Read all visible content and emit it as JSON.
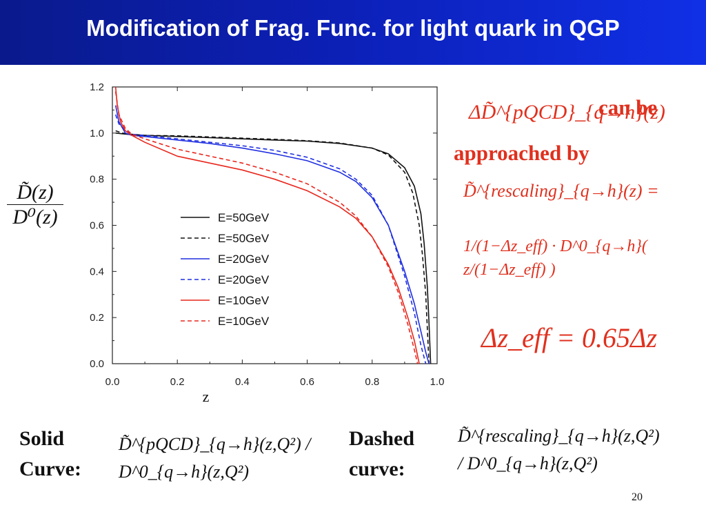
{
  "slide": {
    "title": "Modification of Frag. Func. for light quark in QGP",
    "page_number": "20"
  },
  "formulas": {
    "ylabel_numerator": "D̃(z)",
    "ylabel_denominator": "D⁰(z)",
    "intro_formula": "ΔD̃^{pQCD}_{q→h}(z)",
    "can_be": "can be",
    "approached_by": "approached by",
    "rescaling_lhs": "D̃^{rescaling}_{q→h}(z) =",
    "rescaling_rhs": "1/(1−Δz_eff) · D^0_{q→h}( z/(1−Δz_eff) )",
    "delta_z_eff": "Δz_eff = 0.65Δz",
    "solid_label_1": "Solid",
    "solid_label_2": "Curve:",
    "solid_formula": "D̃^{pQCD}_{q→h}(z,Q²) / D^0_{q→h}(z,Q²)",
    "dashed_label_1": "Dashed",
    "dashed_label_2": "curve:",
    "dashed_formula": "D̃^{rescaling}_{q→h}(z,Q²) / D^0_{q→h}(z,Q²)"
  },
  "colors": {
    "title_bar": "#0c1fb4",
    "formula_red": "#e0301e",
    "black": "#111111",
    "blue": "#1f2fe0",
    "red": "#e8261c"
  },
  "chart_data": {
    "type": "line",
    "xlabel": "z",
    "ylabel": "",
    "xlim": [
      0.0,
      1.0
    ],
    "ylim": [
      0.0,
      1.2
    ],
    "xticks": [
      "0.0",
      "0.2",
      "0.4",
      "0.6",
      "0.8",
      "1.0"
    ],
    "yticks": [
      "0.0",
      "0.2",
      "0.4",
      "0.6",
      "0.8",
      "1.0",
      "1.2"
    ],
    "legend_position": "center-left",
    "series": [
      {
        "name": "E=50GeV",
        "color": "#111111",
        "dash": false,
        "x": [
          0.01,
          0.03,
          0.06,
          0.1,
          0.2,
          0.3,
          0.4,
          0.5,
          0.6,
          0.7,
          0.8,
          0.85,
          0.9,
          0.93,
          0.95,
          0.96,
          0.97,
          0.975,
          0.98
        ],
        "y": [
          1.0,
          0.997,
          0.993,
          0.99,
          0.985,
          0.98,
          0.975,
          0.97,
          0.965,
          0.955,
          0.935,
          0.91,
          0.85,
          0.77,
          0.65,
          0.52,
          0.33,
          0.18,
          0.0
        ]
      },
      {
        "name": "E=50GeV",
        "color": "#111111",
        "dash": true,
        "x": [
          0.01,
          0.03,
          0.06,
          0.1,
          0.2,
          0.3,
          0.4,
          0.5,
          0.6,
          0.7,
          0.8,
          0.85,
          0.9,
          0.925,
          0.945,
          0.955,
          0.965,
          0.975
        ],
        "y": [
          1.01,
          1.0,
          0.995,
          0.99,
          0.988,
          0.983,
          0.978,
          0.973,
          0.967,
          0.957,
          0.935,
          0.905,
          0.83,
          0.74,
          0.6,
          0.47,
          0.3,
          0.0
        ]
      },
      {
        "name": "E=20GeV",
        "color": "#1f2fe0",
        "dash": false,
        "x": [
          0.01,
          0.02,
          0.04,
          0.06,
          0.1,
          0.2,
          0.3,
          0.4,
          0.5,
          0.6,
          0.7,
          0.75,
          0.8,
          0.85,
          0.9,
          0.93,
          0.95,
          0.965,
          0.975
        ],
        "y": [
          1.12,
          1.05,
          1.0,
          0.99,
          0.985,
          0.97,
          0.955,
          0.935,
          0.91,
          0.88,
          0.83,
          0.79,
          0.72,
          0.6,
          0.4,
          0.26,
          0.14,
          0.05,
          0.0
        ]
      },
      {
        "name": "E=20GeV",
        "color": "#1f2fe0",
        "dash": true,
        "x": [
          0.01,
          0.02,
          0.04,
          0.06,
          0.1,
          0.2,
          0.3,
          0.4,
          0.5,
          0.6,
          0.7,
          0.75,
          0.8,
          0.85,
          0.9,
          0.93,
          0.95,
          0.965
        ],
        "y": [
          1.08,
          1.04,
          1.01,
          0.995,
          0.99,
          0.975,
          0.96,
          0.945,
          0.925,
          0.895,
          0.845,
          0.8,
          0.73,
          0.6,
          0.38,
          0.22,
          0.08,
          0.0
        ]
      },
      {
        "name": "E=10GeV",
        "color": "#e8261c",
        "dash": false,
        "x": [
          0.01,
          0.015,
          0.025,
          0.04,
          0.06,
          0.1,
          0.2,
          0.3,
          0.4,
          0.5,
          0.6,
          0.7,
          0.75,
          0.8,
          0.85,
          0.88,
          0.91,
          0.93,
          0.945
        ],
        "y": [
          1.2,
          1.12,
          1.05,
          1.01,
          0.99,
          0.96,
          0.9,
          0.87,
          0.84,
          0.8,
          0.75,
          0.68,
          0.63,
          0.55,
          0.43,
          0.33,
          0.2,
          0.1,
          0.0
        ]
      },
      {
        "name": "E=10GeV",
        "color": "#e8261c",
        "dash": true,
        "x": [
          0.01,
          0.02,
          0.04,
          0.06,
          0.1,
          0.2,
          0.3,
          0.4,
          0.5,
          0.6,
          0.7,
          0.75,
          0.8,
          0.85,
          0.88,
          0.91,
          0.93,
          0.94
        ],
        "y": [
          1.18,
          1.08,
          1.02,
          0.995,
          0.975,
          0.93,
          0.9,
          0.87,
          0.83,
          0.78,
          0.7,
          0.64,
          0.55,
          0.42,
          0.31,
          0.17,
          0.06,
          0.0
        ]
      }
    ]
  }
}
